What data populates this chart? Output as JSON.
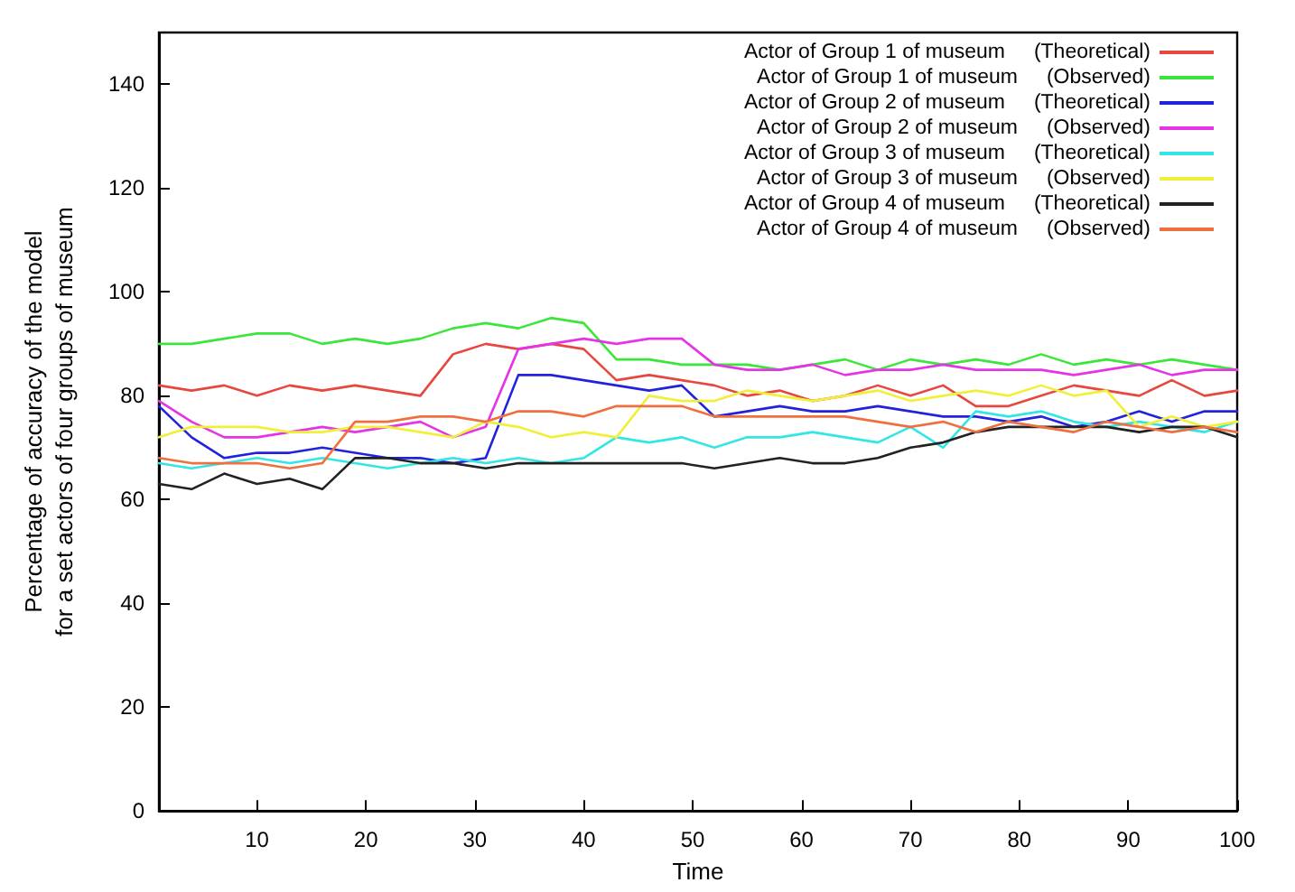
{
  "chart_data": {
    "type": "line",
    "xlabel": "Time",
    "ylabel": "Percentage of accuracy of the model\nfor a set actors of four groups of museum",
    "x": [
      1,
      4,
      7,
      10,
      13,
      16,
      19,
      22,
      25,
      28,
      31,
      34,
      37,
      40,
      43,
      46,
      49,
      52,
      55,
      58,
      61,
      64,
      67,
      70,
      73,
      76,
      79,
      82,
      85,
      88,
      91,
      94,
      97,
      100
    ],
    "xlim": [
      1,
      100
    ],
    "xticks": [
      10,
      20,
      30,
      40,
      50,
      60,
      70,
      80,
      90,
      100
    ],
    "ylim": [
      0,
      150
    ],
    "yticks": [
      0,
      20,
      40,
      60,
      80,
      100,
      120,
      140
    ],
    "grid": false,
    "legend": "top right",
    "marker": "none",
    "line_style": "solid",
    "series": [
      {
        "name": "Actor of Group 1 of museum     (Theoretical)",
        "color": "#e8473f",
        "values": [
          82,
          81,
          82,
          80,
          82,
          81,
          82,
          81,
          80,
          88,
          90,
          89,
          90,
          89,
          83,
          84,
          83,
          82,
          80,
          81,
          79,
          80,
          82,
          80,
          82,
          78,
          78,
          80,
          82,
          81,
          80,
          83,
          80,
          81
        ]
      },
      {
        "name": "Actor of Group 1 of museum     (Observed)",
        "color": "#39e639",
        "values": [
          90,
          90,
          91,
          92,
          92,
          90,
          91,
          90,
          91,
          93,
          94,
          93,
          95,
          94,
          87,
          87,
          86,
          86,
          86,
          85,
          86,
          87,
          85,
          87,
          86,
          87,
          86,
          88,
          86,
          87,
          86,
          87,
          86,
          85
        ]
      },
      {
        "name": "Actor of Group 2 of museum     (Theoretical)",
        "color": "#2222dd",
        "values": [
          78,
          72,
          68,
          69,
          69,
          70,
          69,
          68,
          68,
          67,
          68,
          84,
          84,
          83,
          82,
          81,
          82,
          76,
          77,
          78,
          77,
          77,
          78,
          77,
          76,
          76,
          75,
          76,
          74,
          75,
          77,
          75,
          77,
          77
        ]
      },
      {
        "name": "Actor of Group 2 of museum     (Observed)",
        "color": "#e633e6",
        "values": [
          79,
          75,
          72,
          72,
          73,
          74,
          73,
          74,
          75,
          72,
          74,
          89,
          90,
          91,
          90,
          91,
          91,
          86,
          85,
          85,
          86,
          84,
          85,
          85,
          86,
          85,
          85,
          85,
          84,
          85,
          86,
          84,
          85,
          85
        ]
      },
      {
        "name": "Actor of Group 3 of museum     (Theoretical)",
        "color": "#33e6e6",
        "values": [
          67,
          66,
          67,
          68,
          67,
          68,
          67,
          66,
          67,
          68,
          67,
          68,
          67,
          68,
          72,
          71,
          72,
          70,
          72,
          72,
          73,
          72,
          71,
          74,
          70,
          77,
          76,
          77,
          75,
          74,
          75,
          74,
          73,
          75
        ]
      },
      {
        "name": "Actor of Group 3 of museum     (Observed)",
        "color": "#f0f03a",
        "values": [
          72,
          74,
          74,
          74,
          73,
          73,
          74,
          74,
          73,
          72,
          75,
          74,
          72,
          73,
          72,
          80,
          79,
          79,
          81,
          80,
          79,
          80,
          81,
          79,
          80,
          81,
          80,
          82,
          80,
          81,
          74,
          76,
          74,
          75
        ]
      },
      {
        "name": "Actor of Group 4 of museum     (Theoretical)",
        "color": "#222222",
        "values": [
          63,
          62,
          65,
          63,
          64,
          62,
          68,
          68,
          67,
          67,
          66,
          67,
          67,
          67,
          67,
          67,
          67,
          66,
          67,
          68,
          67,
          67,
          68,
          70,
          71,
          73,
          74,
          74,
          74,
          74,
          73,
          74,
          74,
          72
        ]
      },
      {
        "name": "Actor of Group 4 of museum     (Observed)",
        "color": "#ef6f3f",
        "values": [
          68,
          67,
          67,
          67,
          66,
          67,
          75,
          75,
          76,
          76,
          75,
          77,
          77,
          76,
          78,
          78,
          78,
          76,
          76,
          76,
          76,
          76,
          75,
          74,
          75,
          73,
          75,
          74,
          73,
          75,
          74,
          73,
          74,
          73
        ]
      }
    ]
  }
}
